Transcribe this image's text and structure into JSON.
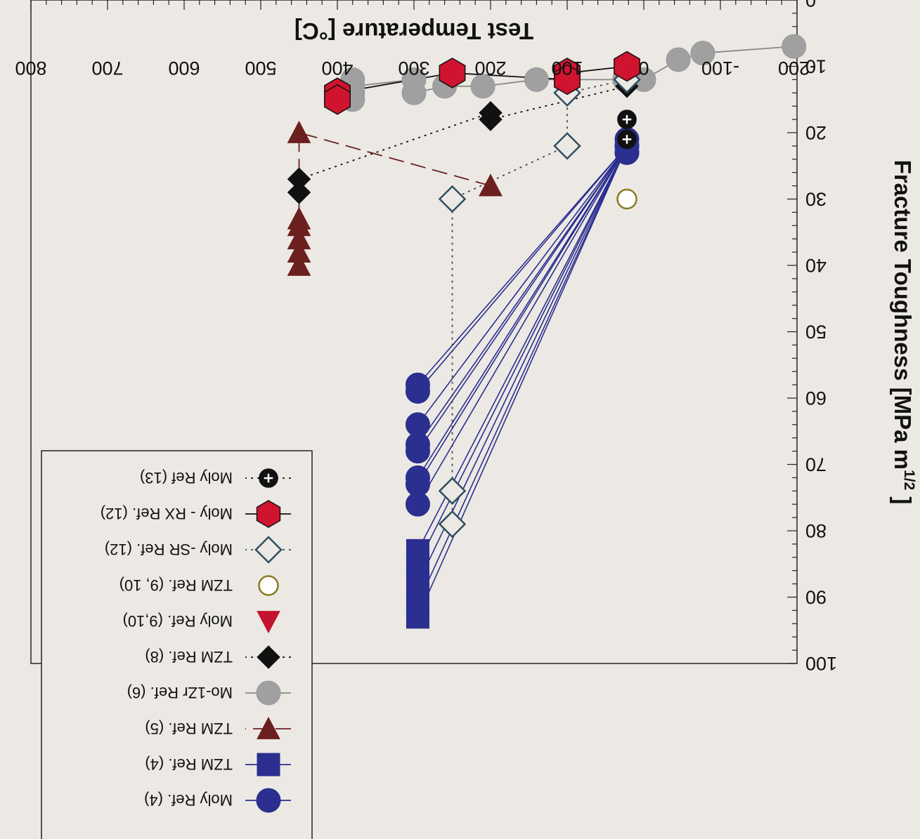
{
  "chart_data": {
    "type": "scatter",
    "orientation": "rotated 180 degrees",
    "xlabel": "Test Temperature [°C]",
    "ylabel": "Fracture Toughness [MPa m^1/2 ]",
    "ylabel_parts": {
      "main": "Fracture Toughness [MPa m",
      "sup": "1/2",
      "end": " ]"
    },
    "xlim": [
      -200,
      800
    ],
    "ylim": [
      0,
      100
    ],
    "xticks": [
      -200,
      -100,
      0,
      100,
      200,
      300,
      400,
      500,
      600,
      700,
      800
    ],
    "yticks": [
      0,
      10,
      20,
      30,
      40,
      50,
      60,
      70,
      80,
      90,
      100
    ],
    "grid": false,
    "legend_position": "bottom-right",
    "series": [
      {
        "name": "Moly Ref. (4)",
        "marker": "circle",
        "color": "#2b2f8f",
        "fill": "#2b2f8f",
        "line": "solid",
        "points": [
          [
            22,
            22
          ],
          [
            22,
            22
          ],
          [
            22,
            23
          ],
          [
            22,
            22
          ],
          [
            22,
            22
          ],
          [
            22,
            21
          ],
          [
            22,
            22
          ],
          [
            22,
            23
          ],
          [
            295,
            58
          ],
          [
            295,
            59
          ],
          [
            295,
            64
          ],
          [
            295,
            67
          ],
          [
            295,
            68
          ],
          [
            295,
            72
          ],
          [
            295,
            73
          ],
          [
            295,
            76
          ]
        ]
      },
      {
        "name": "TZM Ref. (4)",
        "marker": "square",
        "color": "#2b2f8f",
        "fill": "#2b2f8f",
        "line": "solid",
        "points": [
          [
            22,
            22
          ],
          [
            295,
            83
          ],
          [
            295,
            85
          ],
          [
            295,
            88
          ],
          [
            295,
            91
          ],
          [
            295,
            93
          ]
        ]
      },
      {
        "name": "TZM Ref. (5)",
        "marker": "triangle-down",
        "color": "#6b1f1f",
        "fill": "#6b1f1f",
        "line": "dashed",
        "points": [
          [
            200,
            28
          ],
          [
            200,
            28
          ],
          [
            450,
            20
          ],
          [
            450,
            33
          ],
          [
            450,
            34
          ],
          [
            450,
            36
          ],
          [
            450,
            38
          ],
          [
            450,
            40
          ]
        ]
      },
      {
        "name": "Mo-1Zr Ref. (6)",
        "marker": "circle",
        "color": "#9a9a9a",
        "fill": "#a0a0a0",
        "line": "solid",
        "points": [
          [
            -196,
            7
          ],
          [
            -77,
            8
          ],
          [
            -45,
            9
          ],
          [
            0,
            12
          ],
          [
            25,
            12
          ],
          [
            140,
            12
          ],
          [
            210,
            13
          ],
          [
            260,
            13
          ],
          [
            300,
            14
          ],
          [
            300,
            12
          ],
          [
            380,
            13
          ],
          [
            380,
            12
          ],
          [
            380,
            14
          ],
          [
            380,
            15
          ]
        ]
      },
      {
        "name": "TZM Ref. (8)",
        "marker": "diamond",
        "color": "#111111",
        "fill": "#111111",
        "line": "dotted",
        "points": [
          [
            22,
            13
          ],
          [
            200,
            18
          ],
          [
            200,
            17
          ],
          [
            450,
            27
          ],
          [
            450,
            29
          ]
        ]
      },
      {
        "name": "Moly Ref. (9,10)",
        "marker": "triangle-up",
        "color": "#c4122f",
        "fill": "#c4122f",
        "line": "none",
        "points": []
      },
      {
        "name": "TZM Ref. (9, 10)",
        "marker": "circle-open",
        "color": "#8a7a1f",
        "fill": "#ffffff",
        "line": "none",
        "points": [
          [
            22,
            30
          ]
        ]
      },
      {
        "name": "Moly -SR Ref. (12)",
        "marker": "diamond-open",
        "color": "#2f4f5f",
        "fill": "none",
        "line": "dotted",
        "points": [
          [
            22,
            12
          ],
          [
            100,
            14
          ],
          [
            100,
            22
          ],
          [
            250,
            30
          ],
          [
            250,
            74
          ],
          [
            250,
            79
          ]
        ]
      },
      {
        "name": "Moly - RX Ref. (12)",
        "marker": "hexagon",
        "color": "#111111",
        "fill": "#d0142f",
        "line": "solid",
        "points": [
          [
            22,
            10
          ],
          [
            100,
            11
          ],
          [
            100,
            12
          ],
          [
            250,
            11
          ],
          [
            400,
            14
          ],
          [
            400,
            15
          ]
        ]
      },
      {
        "name": "Moly Ref (13)",
        "marker": "circle-plus",
        "color": "#111111",
        "fill": "#111111",
        "line": "dotted",
        "points": [
          [
            22,
            18
          ],
          [
            22,
            21
          ]
        ]
      }
    ]
  }
}
